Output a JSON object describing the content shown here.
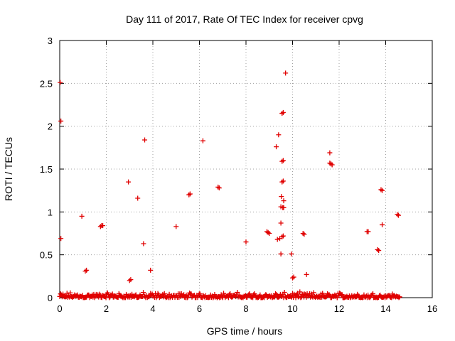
{
  "chart_data": {
    "type": "scatter",
    "title": "Day 111 of 2017, Rate Of TEC Index for receiver cpvg",
    "xlabel": "GPS time / hours",
    "ylabel": "ROTI / TECUs",
    "xlim": [
      0,
      16
    ],
    "ylim": [
      0,
      3
    ],
    "x_ticks": [
      "0",
      "2",
      "4",
      "6",
      "8",
      "10",
      "12",
      "14",
      "16"
    ],
    "y_ticks": [
      "0",
      "0.5",
      "1",
      "1.5",
      "2",
      "2.5",
      "3"
    ],
    "grid": true,
    "marker": "+",
    "color": "#e00000",
    "series": [
      {
        "points": [
          [
            0.02,
            2.51
          ],
          [
            0.05,
            2.06
          ],
          [
            0.05,
            0.69
          ],
          [
            0.95,
            0.95
          ],
          [
            1.1,
            0.31
          ],
          [
            1.15,
            0.32
          ],
          [
            1.75,
            0.83
          ],
          [
            1.8,
            0.84
          ],
          [
            1.85,
            0.84
          ],
          [
            2.95,
            1.35
          ],
          [
            3.0,
            0.2
          ],
          [
            3.05,
            0.21
          ],
          [
            3.35,
            1.16
          ],
          [
            3.6,
            0.63
          ],
          [
            3.65,
            1.84
          ],
          [
            3.9,
            0.32
          ],
          [
            5.0,
            0.83
          ],
          [
            5.55,
            1.2
          ],
          [
            5.6,
            1.21
          ],
          [
            6.15,
            1.83
          ],
          [
            6.8,
            1.29
          ],
          [
            6.85,
            1.28
          ],
          [
            8.0,
            0.65
          ],
          [
            8.9,
            0.77
          ],
          [
            8.95,
            0.76
          ],
          [
            9.0,
            0.75
          ],
          [
            9.3,
            1.76
          ],
          [
            9.35,
            0.68
          ],
          [
            9.4,
            1.9
          ],
          [
            9.45,
            0.69
          ],
          [
            9.5,
            0.87
          ],
          [
            9.5,
            0.51
          ],
          [
            9.5,
            1.06
          ],
          [
            9.52,
            1.18
          ],
          [
            9.55,
            0.71
          ],
          [
            9.55,
            1.35
          ],
          [
            9.55,
            1.59
          ],
          [
            9.55,
            2.15
          ],
          [
            9.58,
            1.05
          ],
          [
            9.6,
            2.16
          ],
          [
            9.6,
            1.36
          ],
          [
            9.6,
            1.6
          ],
          [
            9.62,
            1.13
          ],
          [
            9.62,
            1.05
          ],
          [
            9.6,
            0.72
          ],
          [
            9.7,
            2.62
          ],
          [
            9.95,
            0.51
          ],
          [
            10.0,
            0.23
          ],
          [
            10.05,
            0.24
          ],
          [
            10.45,
            0.75
          ],
          [
            10.5,
            0.74
          ],
          [
            10.6,
            0.27
          ],
          [
            11.6,
            1.69
          ],
          [
            11.6,
            1.57
          ],
          [
            11.65,
            1.56
          ],
          [
            11.7,
            1.55
          ],
          [
            13.2,
            0.77
          ],
          [
            13.25,
            0.77
          ],
          [
            13.65,
            0.56
          ],
          [
            13.7,
            0.55
          ],
          [
            13.8,
            1.26
          ],
          [
            13.85,
            1.25
          ],
          [
            13.85,
            0.85
          ],
          [
            14.5,
            0.97
          ],
          [
            14.55,
            0.96
          ]
        ],
        "baseline": {
          "x_start": 0.0,
          "x_end": 14.6,
          "y_min": 0.0,
          "y_max": 0.07
        }
      }
    ]
  }
}
